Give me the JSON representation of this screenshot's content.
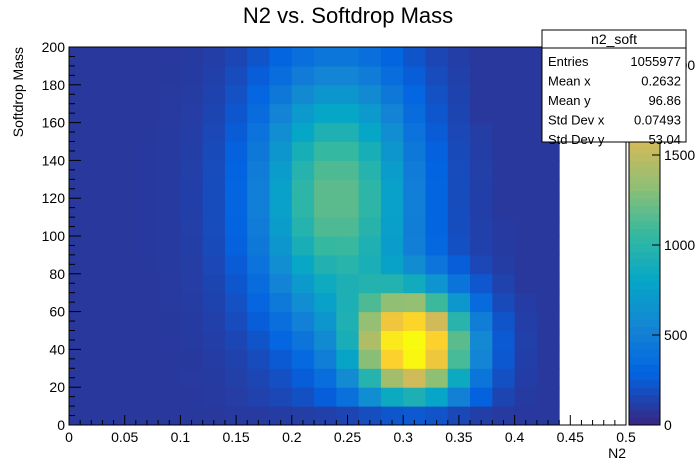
{
  "chart_data": {
    "type": "heatmap",
    "title": "N2 vs. Softdrop Mass",
    "xlabel": "N2",
    "ylabel": "Softdrop Mass",
    "xlim": [
      0,
      0.5
    ],
    "ylim": [
      0,
      200
    ],
    "x_ticks": [
      "0",
      "0.05",
      "0.1",
      "0.15",
      "0.2",
      "0.25",
      "0.3",
      "0.35",
      "0.4",
      "0.45",
      "0.5"
    ],
    "y_ticks": [
      "0",
      "20",
      "40",
      "60",
      "80",
      "100",
      "120",
      "140",
      "160",
      "180",
      "200"
    ],
    "z_ticks": [
      "0",
      "500",
      "1000",
      "1500",
      "2000"
    ],
    "z_max": 2100,
    "x_bins": 25,
    "y_bins": 20,
    "density_peak": {
      "x": 0.31,
      "y": 42
    },
    "stats": {
      "name": "n2_soft",
      "rows": [
        {
          "label": "Entries",
          "value": "1055977"
        },
        {
          "label": "Mean x",
          "value": "0.2632"
        },
        {
          "label": "Mean y",
          "value": "96.86"
        },
        {
          "label": "Std Dev x",
          "value": "0.07493"
        },
        {
          "label": "Std Dev y",
          "value": "53.04"
        }
      ]
    },
    "palette": [
      "#352a87",
      "#0363e1",
      "#1485d4",
      "#06a7c6",
      "#38b99e",
      "#92bf73",
      "#d9ba56",
      "#fcce2e",
      "#f9fb0e"
    ]
  }
}
